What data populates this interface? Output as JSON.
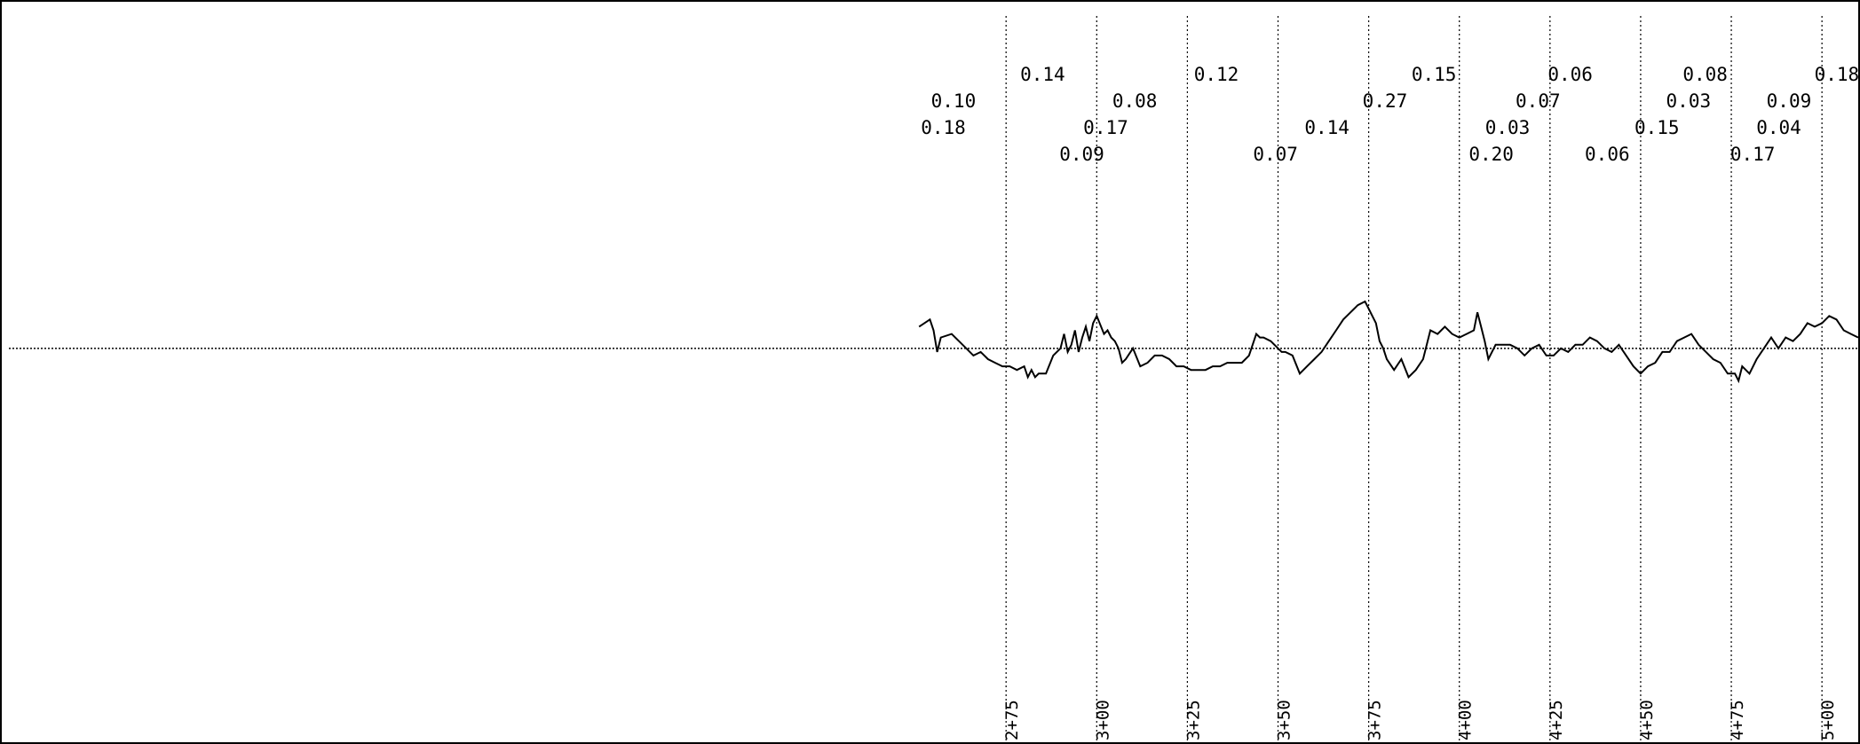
{
  "chart_data": {
    "type": "line",
    "title": "",
    "xlabel": "",
    "ylabel": "",
    "grid": true,
    "x_range": [
      0,
      510
    ],
    "stations": [
      {
        "x": 275,
        "label": "2+75"
      },
      {
        "x": 300,
        "label": "3+00"
      },
      {
        "x": 325,
        "label": "3+25"
      },
      {
        "x": 350,
        "label": "3+50"
      },
      {
        "x": 375,
        "label": "3+75"
      },
      {
        "x": 400,
        "label": "4+00"
      },
      {
        "x": 425,
        "label": "4+25"
      },
      {
        "x": 450,
        "label": "4+50"
      },
      {
        "x": 475,
        "label": "4+75"
      },
      {
        "x": 500,
        "label": "5+00"
      }
    ],
    "value_labels": [
      {
        "x": 254.3,
        "row": 2,
        "text": "0.10"
      },
      {
        "x": 251.5,
        "row": 3,
        "text": "0.18"
      },
      {
        "x": 278.9,
        "row": 1,
        "text": "0.14"
      },
      {
        "x": 289.7,
        "row": 4,
        "text": "0.09"
      },
      {
        "x": 296.3,
        "row": 3,
        "text": "0.17"
      },
      {
        "x": 304.3,
        "row": 2,
        "text": "0.08"
      },
      {
        "x": 326.8,
        "row": 1,
        "text": "0.12"
      },
      {
        "x": 343.1,
        "row": 4,
        "text": "0.07"
      },
      {
        "x": 357.3,
        "row": 3,
        "text": "0.14"
      },
      {
        "x": 373.3,
        "row": 2,
        "text": "0.27"
      },
      {
        "x": 386.8,
        "row": 1,
        "text": "0.15"
      },
      {
        "x": 402.6,
        "row": 4,
        "text": "0.20"
      },
      {
        "x": 407.1,
        "row": 3,
        "text": "0.03"
      },
      {
        "x": 415.5,
        "row": 2,
        "text": "0.07"
      },
      {
        "x": 424.4,
        "row": 1,
        "text": "0.06"
      },
      {
        "x": 434.6,
        "row": 4,
        "text": "0.06"
      },
      {
        "x": 448.3,
        "row": 3,
        "text": "0.15"
      },
      {
        "x": 457.0,
        "row": 2,
        "text": "0.03"
      },
      {
        "x": 461.6,
        "row": 1,
        "text": "0.08"
      },
      {
        "x": 474.7,
        "row": 4,
        "text": "0.17"
      },
      {
        "x": 481.9,
        "row": 3,
        "text": "0.04"
      },
      {
        "x": 484.7,
        "row": 2,
        "text": "0.09"
      },
      {
        "x": 497.9,
        "row": 1,
        "text": "0.18"
      }
    ],
    "baseline": 0,
    "y_range": [
      -1.9,
      1.3
    ],
    "profile": {
      "x": [
        251,
        254,
        255,
        256,
        257,
        260,
        262,
        264,
        266,
        268,
        270,
        272,
        274,
        276,
        278,
        280,
        281,
        282,
        283,
        284,
        286,
        288,
        290,
        291,
        292,
        293,
        294,
        295,
        296,
        297,
        298,
        299,
        300,
        302,
        303,
        304,
        305,
        306,
        307,
        308,
        310,
        312,
        314,
        316,
        318,
        320,
        322,
        324,
        326,
        328,
        330,
        332,
        334,
        336,
        338,
        340,
        342,
        344,
        345,
        346,
        348,
        350,
        351,
        352,
        354,
        356,
        358,
        360,
        362,
        364,
        366,
        368,
        370,
        372,
        374,
        375,
        376,
        377,
        378,
        379,
        380,
        382,
        384,
        386,
        388,
        390,
        392,
        394,
        396,
        398,
        400,
        402,
        404,
        405,
        406,
        407,
        408,
        410,
        412,
        414,
        416,
        418,
        420,
        422,
        424,
        426,
        428,
        430,
        432,
        434,
        436,
        438,
        440,
        442,
        444,
        446,
        448,
        450,
        452,
        454,
        456,
        458,
        460,
        462,
        464,
        466,
        468,
        470,
        472,
        474,
        475,
        476,
        477,
        478,
        480,
        482,
        484,
        486,
        488,
        490,
        492,
        494,
        496,
        498,
        500,
        502,
        504,
        506,
        508,
        510
      ],
      "y": [
        0.6,
        0.8,
        0.5,
        -0.1,
        0.3,
        0.4,
        0.2,
        0.0,
        -0.2,
        -0.1,
        -0.3,
        -0.4,
        -0.5,
        -0.5,
        -0.6,
        -0.5,
        -0.8,
        -0.6,
        -0.8,
        -0.7,
        -0.7,
        -0.2,
        0.0,
        0.4,
        -0.1,
        0.1,
        0.5,
        -0.1,
        0.3,
        0.6,
        0.2,
        0.7,
        0.9,
        0.4,
        0.5,
        0.3,
        0.2,
        0.0,
        -0.4,
        -0.3,
        0.0,
        -0.5,
        -0.4,
        -0.2,
        -0.2,
        -0.3,
        -0.5,
        -0.5,
        -0.6,
        -0.6,
        -0.6,
        -0.5,
        -0.5,
        -0.4,
        -0.4,
        -0.4,
        -0.2,
        0.4,
        0.3,
        0.3,
        0.2,
        0.0,
        -0.1,
        -0.1,
        -0.2,
        -0.7,
        -0.5,
        -0.3,
        -0.1,
        0.2,
        0.5,
        0.8,
        1.0,
        1.2,
        1.3,
        1.1,
        0.9,
        0.7,
        0.2,
        0.0,
        -0.3,
        -0.6,
        -0.3,
        -0.8,
        -0.6,
        -0.3,
        0.5,
        0.4,
        0.6,
        0.4,
        0.3,
        0.4,
        0.5,
        1.0,
        0.6,
        0.2,
        -0.3,
        0.1,
        0.1,
        0.1,
        0.0,
        -0.2,
        0.0,
        0.1,
        -0.2,
        -0.2,
        0.0,
        -0.1,
        0.1,
        0.1,
        0.3,
        0.2,
        0.0,
        -0.1,
        0.1,
        -0.2,
        -0.5,
        -0.7,
        -0.5,
        -0.4,
        -0.1,
        -0.1,
        0.2,
        0.3,
        0.4,
        0.1,
        -0.1,
        -0.3,
        -0.4,
        -0.7,
        -0.7,
        -0.7,
        -0.9,
        -0.5,
        -0.7,
        -0.3,
        0.0,
        0.3,
        0.0,
        0.3,
        0.2,
        0.4,
        0.7,
        0.6,
        0.7,
        0.9,
        0.8,
        0.5,
        0.4,
        0.3
      ]
    }
  }
}
